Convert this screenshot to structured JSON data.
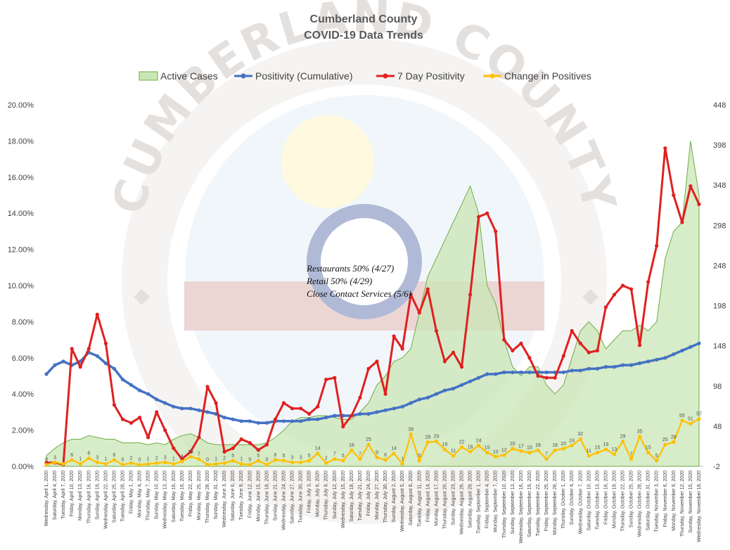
{
  "chart_data": {
    "type": "line",
    "title": "Cumberland County",
    "subtitle": "COVID-19 Data Trends",
    "legend_position": "top",
    "grid": false,
    "y_left": {
      "ticks": [
        "0.00%",
        "2.00%",
        "4.00%",
        "6.00%",
        "8.00%",
        "10.00%",
        "12.00%",
        "14.00%",
        "16.00%",
        "18.00%",
        "20.00%"
      ],
      "range": [
        0,
        20
      ]
    },
    "y_right": {
      "ticks": [
        "-2",
        "48",
        "98",
        "148",
        "198",
        "248",
        "298",
        "348",
        "398",
        "448"
      ],
      "range": [
        -2,
        448
      ]
    },
    "annotations": [
      "Restaurants 50% (4/27)",
      "Retail 50% (4/29)",
      "Close Contact Services (5/6)"
    ],
    "x_labels": [
      "Wednesday, April 1, 2020",
      "Saturday, April 4, 2020",
      "Tuesday, April 7, 2020",
      "Friday, April 10, 2020",
      "Monday, April 13, 2020",
      "Thursday, April 16, 2020",
      "Sunday, April 19, 2020",
      "Wednesday, April 22, 2020",
      "Saturday, April 25, 2020",
      "Tuesday, April 28, 2020",
      "Friday, May 1, 2020",
      "Monday, May 4, 2020",
      "Thursday, May 7, 2020",
      "Sunday, May 10, 2020",
      "Wednesday, May 13, 2020",
      "Saturday, May 16, 2020",
      "Tuesday, May 19, 2020",
      "Friday, May 22, 2020",
      "Monday, May 25, 2020",
      "Thursday, May 28, 2020",
      "Sunday, May 31, 2020",
      "Wednesday, June 3, 2020",
      "Saturday, June 6, 2020",
      "Tuesday, June 9, 2020",
      "Friday, June 12, 2020",
      "Monday, June 15, 2020",
      "Thursday, June 18, 2020",
      "Sunday, June 21, 2020",
      "Wednesday, June 24, 2020",
      "Saturday, June 27, 2020",
      "Tuesday, June 30, 2020",
      "Friday, July 3, 2020",
      "Monday, July 6, 2020",
      "Thursday, July 9, 2020",
      "Sunday, July 12, 2020",
      "Wednesday, July 15, 2020",
      "Saturday, July 18, 2020",
      "Tuesday, July 21, 2020",
      "Friday, July 24, 2020",
      "Monday, July 27, 2020",
      "Thursday, July 30, 2020",
      "Sunday, August 2, 2020",
      "Wednesday, August 5, 2020",
      "Saturday, August 8, 2020",
      "Tuesday, August 11, 2020",
      "Friday, August 14, 2020",
      "Monday, August 17, 2020",
      "Thursday, August 20, 2020",
      "Sunday, August 23, 2020",
      "Wednesday, August 26, 2020",
      "Saturday, August 29, 2020",
      "Tuesday, September 1, 2020",
      "Friday, September 4, 2020",
      "Monday, September 7, 2020",
      "Thursday, September 10, 2020",
      "Sunday, September 13, 2020",
      "Wednesday, September 16, 2020",
      "Saturday, September 19, 2020",
      "Tuesday, September 22, 2020",
      "Friday, September 25, 2020",
      "Monday, September 28, 2020",
      "Thursday, October 1, 2020",
      "Sunday, October 4, 2020",
      "Wednesday, October 7, 2020",
      "Saturday, October 10, 2020",
      "Tuesday, October 13, 2020",
      "Friday, October 16, 2020",
      "Monday, October 19, 2020",
      "Thursday, October 22, 2020",
      "Sunday, October 25, 2020",
      "Wednesday, October 28, 2020",
      "Saturday, October 31, 2020",
      "Tuesday, November 3, 2020",
      "Friday, November 6, 2020",
      "Monday, November 9, 2020",
      "Thursday, November 12, 2020",
      "Sunday, November 15, 2020",
      "Wednesday, November 18, 2020"
    ],
    "series": [
      {
        "name": "Active Cases",
        "type": "area",
        "axis": "left",
        "color": "#c9e6b6",
        "stroke": "#70ad47",
        "values": [
          0.6,
          1.0,
          1.3,
          1.5,
          1.5,
          1.7,
          1.6,
          1.5,
          1.5,
          1.3,
          1.3,
          1.3,
          1.2,
          1.3,
          1.2,
          1.5,
          1.7,
          1.8,
          1.6,
          1.3,
          1.2,
          1.2,
          1.2,
          1.2,
          1.2,
          1.2,
          1.3,
          1.6,
          2.0,
          2.5,
          2.7,
          2.7,
          2.8,
          2.8,
          2.7,
          2.6,
          2.6,
          3.0,
          3.5,
          4.5,
          5.0,
          5.8,
          6.0,
          6.5,
          8.5,
          10.5,
          11.5,
          12.5,
          13.5,
          14.5,
          15.5,
          14.0,
          10.0,
          9.0,
          7.0,
          5.5,
          5.0,
          5.5,
          5.5,
          4.5,
          4.0,
          4.5,
          6.0,
          7.5,
          8.0,
          7.5,
          6.5,
          7.0,
          7.5,
          7.5,
          7.8,
          7.5,
          8.0,
          11.5,
          13.0,
          13.5,
          18.0,
          15.0
        ]
      },
      {
        "name": "Positivity (Cumulative)",
        "type": "line",
        "axis": "left",
        "color": "#4472c4",
        "values": [
          5.1,
          5.6,
          5.8,
          5.6,
          5.8,
          6.3,
          6.1,
          5.7,
          5.4,
          4.8,
          4.5,
          4.2,
          4.0,
          3.7,
          3.5,
          3.3,
          3.2,
          3.2,
          3.1,
          3.0,
          2.9,
          2.7,
          2.6,
          2.5,
          2.5,
          2.4,
          2.4,
          2.5,
          2.5,
          2.5,
          2.5,
          2.6,
          2.6,
          2.7,
          2.8,
          2.8,
          2.8,
          2.9,
          2.9,
          3.0,
          3.1,
          3.2,
          3.3,
          3.5,
          3.7,
          3.8,
          4.0,
          4.2,
          4.3,
          4.5,
          4.7,
          4.9,
          5.1,
          5.1,
          5.2,
          5.2,
          5.2,
          5.2,
          5.2,
          5.2,
          5.2,
          5.2,
          5.3,
          5.3,
          5.4,
          5.4,
          5.5,
          5.5,
          5.6,
          5.6,
          5.7,
          5.8,
          5.9,
          6.0,
          6.2,
          6.4,
          6.6,
          6.8
        ]
      },
      {
        "name": "7 Day Positivity",
        "type": "line",
        "axis": "left",
        "color": "#e02020",
        "values": [
          0.2,
          0.2,
          0.1,
          6.5,
          5.5,
          6.5,
          8.4,
          6.8,
          3.4,
          2.6,
          2.4,
          2.7,
          1.6,
          3.0,
          2.0,
          1.0,
          0.4,
          0.8,
          1.6,
          4.4,
          3.5,
          0.8,
          1.0,
          1.5,
          1.3,
          0.9,
          1.2,
          2.6,
          3.5,
          3.2,
          3.2,
          2.9,
          3.3,
          4.8,
          4.9,
          2.2,
          2.8,
          3.8,
          5.4,
          5.8,
          4.0,
          7.2,
          6.5,
          9.5,
          8.5,
          9.8,
          7.5,
          5.8,
          6.3,
          5.5,
          9.5,
          13.8,
          14.0,
          13.0,
          7.0,
          6.4,
          6.8,
          6.0,
          5.0,
          4.9,
          4.9,
          6.1,
          7.5,
          6.8,
          6.3,
          6.4,
          8.8,
          9.5,
          10.0,
          9.8,
          6.7,
          10.2,
          12.2,
          17.6,
          15.0,
          13.5,
          15.5,
          14.5
        ]
      },
      {
        "name": "Change in Positives",
        "type": "line",
        "axis": "right",
        "color": "#ffc000",
        "values": [
          0,
          3,
          1,
          6,
          1,
          8,
          3,
          1,
          6,
          0,
          2,
          0,
          1,
          2,
          3,
          1,
          4,
          10,
          7,
          0,
          1,
          2,
          5,
          1,
          0,
          5,
          0,
          6,
          5,
          3,
          3,
          5,
          14,
          2,
          7,
          5,
          18,
          7,
          25,
          9,
          6,
          14,
          1,
          38,
          5,
          28,
          29,
          19,
          11,
          22,
          16,
          24,
          15,
          10,
          12,
          20,
          17,
          15,
          18,
          7,
          18,
          20,
          24,
          32,
          11,
          15,
          19,
          13,
          29,
          7,
          35,
          15,
          5,
          25,
          28,
          55,
          51,
          57
        ]
      }
    ]
  },
  "logo_text": "CUMBERLAND COUNTY"
}
